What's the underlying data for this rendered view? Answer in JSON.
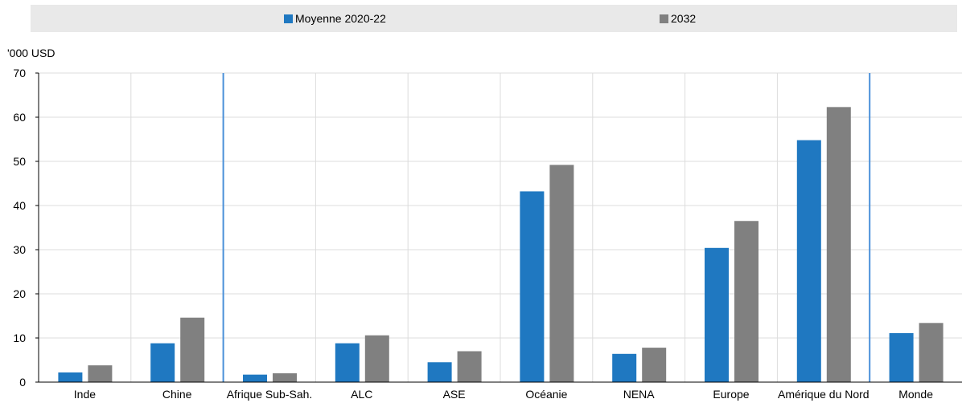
{
  "chart_data": {
    "type": "bar",
    "unit_label": "'000 USD",
    "categories": [
      "Inde",
      "Chine",
      "Afrique Sub-Sah.",
      "ALC",
      "ASE",
      "Océanie",
      "NENA",
      "Europe",
      "Amérique du Nord",
      "Monde"
    ],
    "series": [
      {
        "name": "Moyenne 2020-22",
        "color": "#1f78c1",
        "values": [
          2.2,
          8.8,
          1.7,
          8.8,
          4.5,
          43.2,
          6.4,
          30.4,
          54.8,
          11.1
        ]
      },
      {
        "name": "2032",
        "color": "#808080",
        "values": [
          3.8,
          14.6,
          2.0,
          10.6,
          7.0,
          49.2,
          7.8,
          36.5,
          62.3,
          13.4
        ]
      }
    ],
    "ylim": [
      0,
      70
    ],
    "yticks": [
      0,
      10,
      20,
      30,
      40,
      50,
      60,
      70
    ],
    "grid": true,
    "legend_position": "top",
    "separators_after_categories": [
      "Chine",
      "Amérique du Nord"
    ],
    "separator_color": "#4a90d9"
  }
}
